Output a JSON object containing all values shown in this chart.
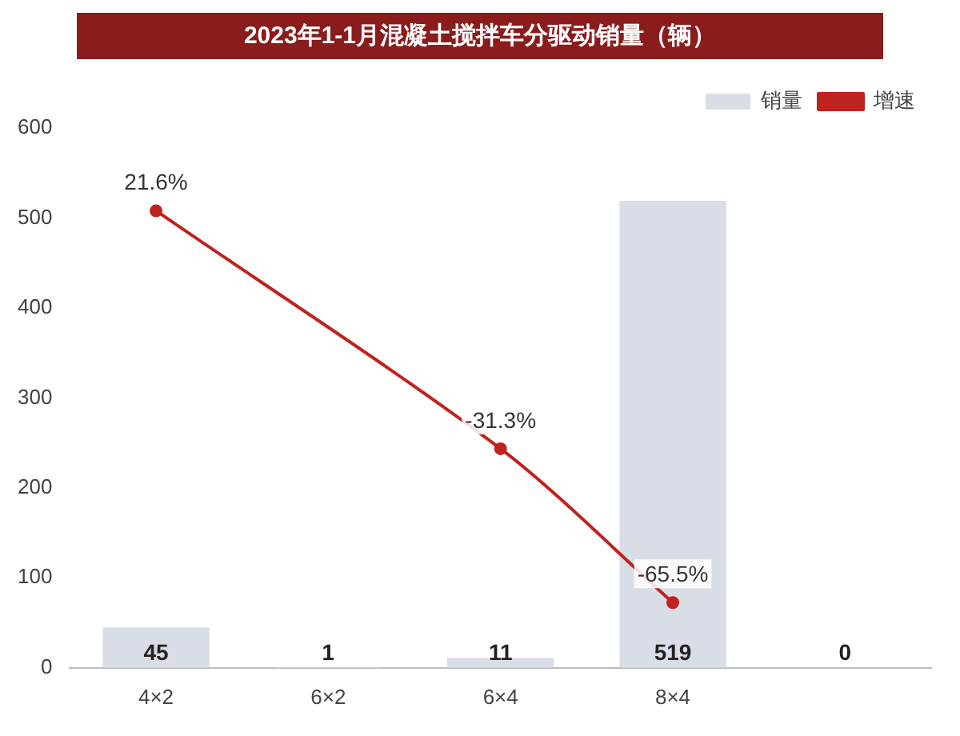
{
  "chart_data": {
    "type": "bar",
    "title": "2023年1-1月混凝土搅拌车分驱动销量（辆）",
    "categories": [
      "4×2",
      "6×2",
      "6×4",
      "8×4",
      null
    ],
    "series": [
      {
        "name": "销量",
        "color": "#d9dde6",
        "values": [
          45,
          1,
          11,
          519,
          0
        ],
        "data_labels": true
      },
      {
        "name": "增速",
        "type": "line",
        "axis": "y2",
        "color": "#c0221e",
        "marker": "circle",
        "values": [
          21.6,
          null,
          -31.3,
          -65.5,
          null
        ],
        "value_labels": [
          "21.6%",
          null,
          "-31.3%",
          "-65.5%",
          null
        ]
      }
    ],
    "ylim": [
      0,
      600
    ],
    "yticks": [
      0,
      100,
      200,
      300,
      400,
      500,
      600
    ],
    "legend": "top right",
    "grid": false
  }
}
